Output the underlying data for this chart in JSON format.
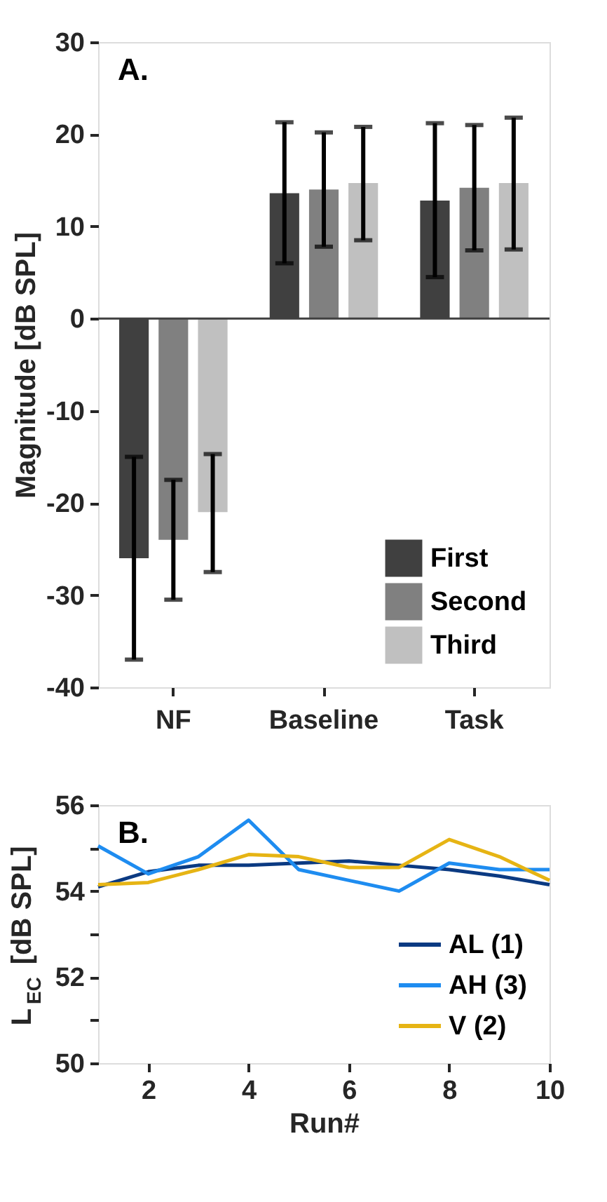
{
  "chart_data": [
    {
      "type": "bar",
      "ylabel": "Magnitude [dB SPL]",
      "categories": [
        "NF",
        "Baseline",
        "Task"
      ],
      "series": [
        {
          "name": "First",
          "color": "#404040",
          "values": [
            -26,
            13.6,
            12.8
          ],
          "errors": [
            [
              -37,
              -15
            ],
            [
              6,
              21.3
            ],
            [
              4.5,
              21.2
            ]
          ]
        },
        {
          "name": "Second",
          "color": "#808080",
          "values": [
            -24,
            14,
            14.2
          ],
          "errors": [
            [
              -30.5,
              -17.5
            ],
            [
              7.8,
              20.2
            ],
            [
              7.4,
              21
            ]
          ]
        },
        {
          "name": "Third",
          "color": "#c0c0c0",
          "values": [
            -21,
            14.7,
            14.7
          ],
          "errors": [
            [
              -27.5,
              -14.7
            ],
            [
              8.5,
              20.8
            ],
            [
              7.5,
              21.8
            ]
          ]
        }
      ],
      "ylim": [
        -40,
        30
      ],
      "yticks": [
        -40,
        -30,
        -20,
        -10,
        0,
        10,
        20,
        30
      ],
      "grid": false,
      "legend": "bottom right",
      "ref_lines": [
        {
          "axis": "y",
          "value": 0,
          "color": "#404040"
        }
      ],
      "annotations": [
        "A."
      ]
    },
    {
      "type": "line",
      "xlabel": "Run#",
      "ylabel": "L$_{EC}$ [dB SPL]",
      "x": [
        1,
        2,
        3,
        4,
        5,
        6,
        7,
        8,
        9,
        10
      ],
      "series": [
        {
          "name": "AL (1)",
          "color": "#0b3a82",
          "values": [
            54.1,
            54.45,
            54.6,
            54.6,
            54.65,
            54.7,
            54.6,
            54.5,
            54.35,
            54.15
          ]
        },
        {
          "name": "AH (3)",
          "color": "#1e8cf0",
          "values": [
            55.05,
            54.4,
            54.8,
            55.65,
            54.5,
            54.25,
            54.0,
            54.65,
            54.5,
            54.5
          ]
        },
        {
          "name": "V (2)",
          "color": "#e6b414",
          "values": [
            54.15,
            54.2,
            54.5,
            54.85,
            54.8,
            54.55,
            54.55,
            55.2,
            54.8,
            54.25
          ]
        }
      ],
      "xlim": [
        1,
        10
      ],
      "xticks": [
        2,
        4,
        6,
        8,
        10
      ],
      "ylim": [
        50,
        56
      ],
      "yticks": [
        50,
        {
          "value": 51,
          "label": null
        },
        52,
        {
          "value": 53,
          "label": null
        },
        54,
        {
          "value": 55,
          "label": null
        },
        56
      ],
      "grid": false,
      "legend": "bottom right",
      "line_style": "solid",
      "marker": "none",
      "annotations": [
        "B."
      ]
    }
  ]
}
